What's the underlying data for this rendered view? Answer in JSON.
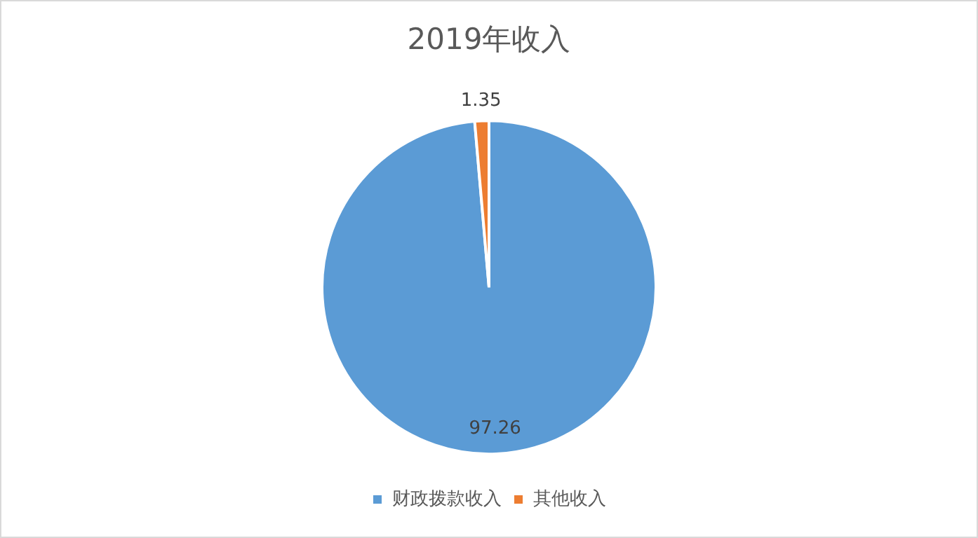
{
  "chart_data": {
    "type": "pie",
    "title": "2019年收入",
    "categories": [
      "财政拨款收入",
      "其他收入"
    ],
    "values": [
      97.26,
      1.35
    ],
    "colors": [
      "#5b9bd5",
      "#ed7d31"
    ],
    "data_labels": true,
    "legend": "bottom"
  }
}
